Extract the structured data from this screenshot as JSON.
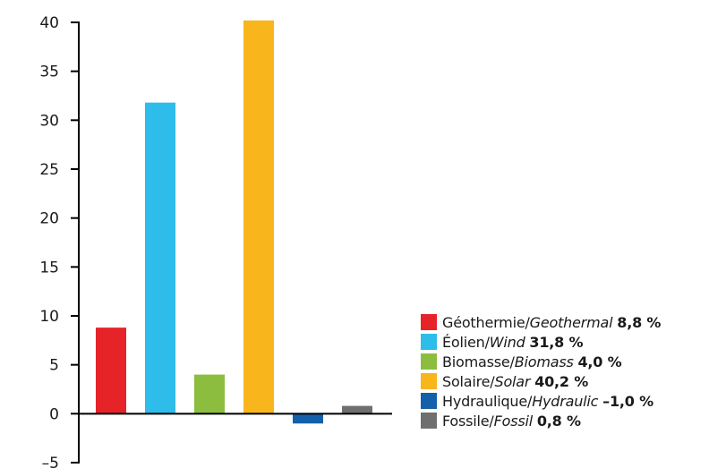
{
  "colors": {
    "axis": "#000000",
    "text": "#1a1a1a"
  },
  "chart_data": {
    "type": "bar",
    "title": "",
    "xlabel": "",
    "ylabel": "",
    "ylim": [
      -5,
      40
    ],
    "yticks": [
      40,
      35,
      30,
      25,
      20,
      15,
      10,
      5,
      0,
      -5
    ],
    "ytick_labels": [
      "40",
      "35",
      "30",
      "25",
      "20",
      "15",
      "10",
      "5",
      "0",
      "–5"
    ],
    "grid": false,
    "legend_position": "bottom-right",
    "categories": [
      "Géothermie/Geothermal",
      "Éolien/Wind",
      "Biomasse/Biomass",
      "Solaire/Solar",
      "Hydraulique/Hydraulic",
      "Fossile/Fossil"
    ],
    "values": [
      8.8,
      31.8,
      4.0,
      40.2,
      -1.0,
      0.8
    ],
    "colors": [
      "#e52329",
      "#2ebcea",
      "#8cbd3f",
      "#f8b51c",
      "#1560aa",
      "#6f6f6f"
    ],
    "legend": [
      {
        "fr": "Géothermie/",
        "en": "Geothermal",
        "value": "8,8 %",
        "color": "#e52329"
      },
      {
        "fr": "Éolien/",
        "en": "Wind",
        "value": "31,8 %",
        "color": "#2ebcea"
      },
      {
        "fr": "Biomasse/",
        "en": "Biomass",
        "value": "4,0 %",
        "color": "#8cbd3f"
      },
      {
        "fr": "Solaire/",
        "en": "Solar",
        "value": "40,2 %",
        "color": "#f8b51c"
      },
      {
        "fr": "Hydraulique/",
        "en": "Hydraulic",
        "value": "–1,0 %",
        "color": "#1560aa"
      },
      {
        "fr": "Fossile/",
        "en": "Fossil",
        "value": "0,8 %",
        "color": "#6f6f6f"
      }
    ]
  }
}
